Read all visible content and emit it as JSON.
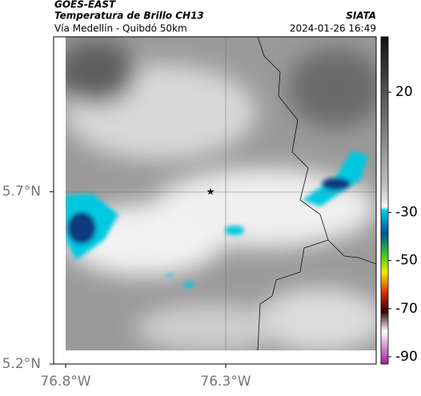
{
  "header": {
    "source": "GOES-EAST",
    "title": "Temperatura de Brillo CH13",
    "route": "Vía Medellín - Quibdó 50km",
    "credit": "SIATA",
    "datetime": "2024-01-26 16:49"
  },
  "map": {
    "xlim": [
      -76.8375,
      -75.83
    ],
    "ylim": [
      5.2,
      6.15
    ],
    "xticks": [
      {
        "value": -76.8,
        "label": "76.8°W"
      },
      {
        "value": -76.3,
        "label": "76.3°W"
      }
    ],
    "yticks": [
      {
        "value": 5.2,
        "label": "5.2°N"
      },
      {
        "value": 5.7,
        "label": "5.7°N"
      }
    ]
  },
  "colorbar": {
    "lim": [
      -93,
      43
    ],
    "ticks": [
      20,
      -30,
      -50,
      -70,
      -90
    ]
  }
}
